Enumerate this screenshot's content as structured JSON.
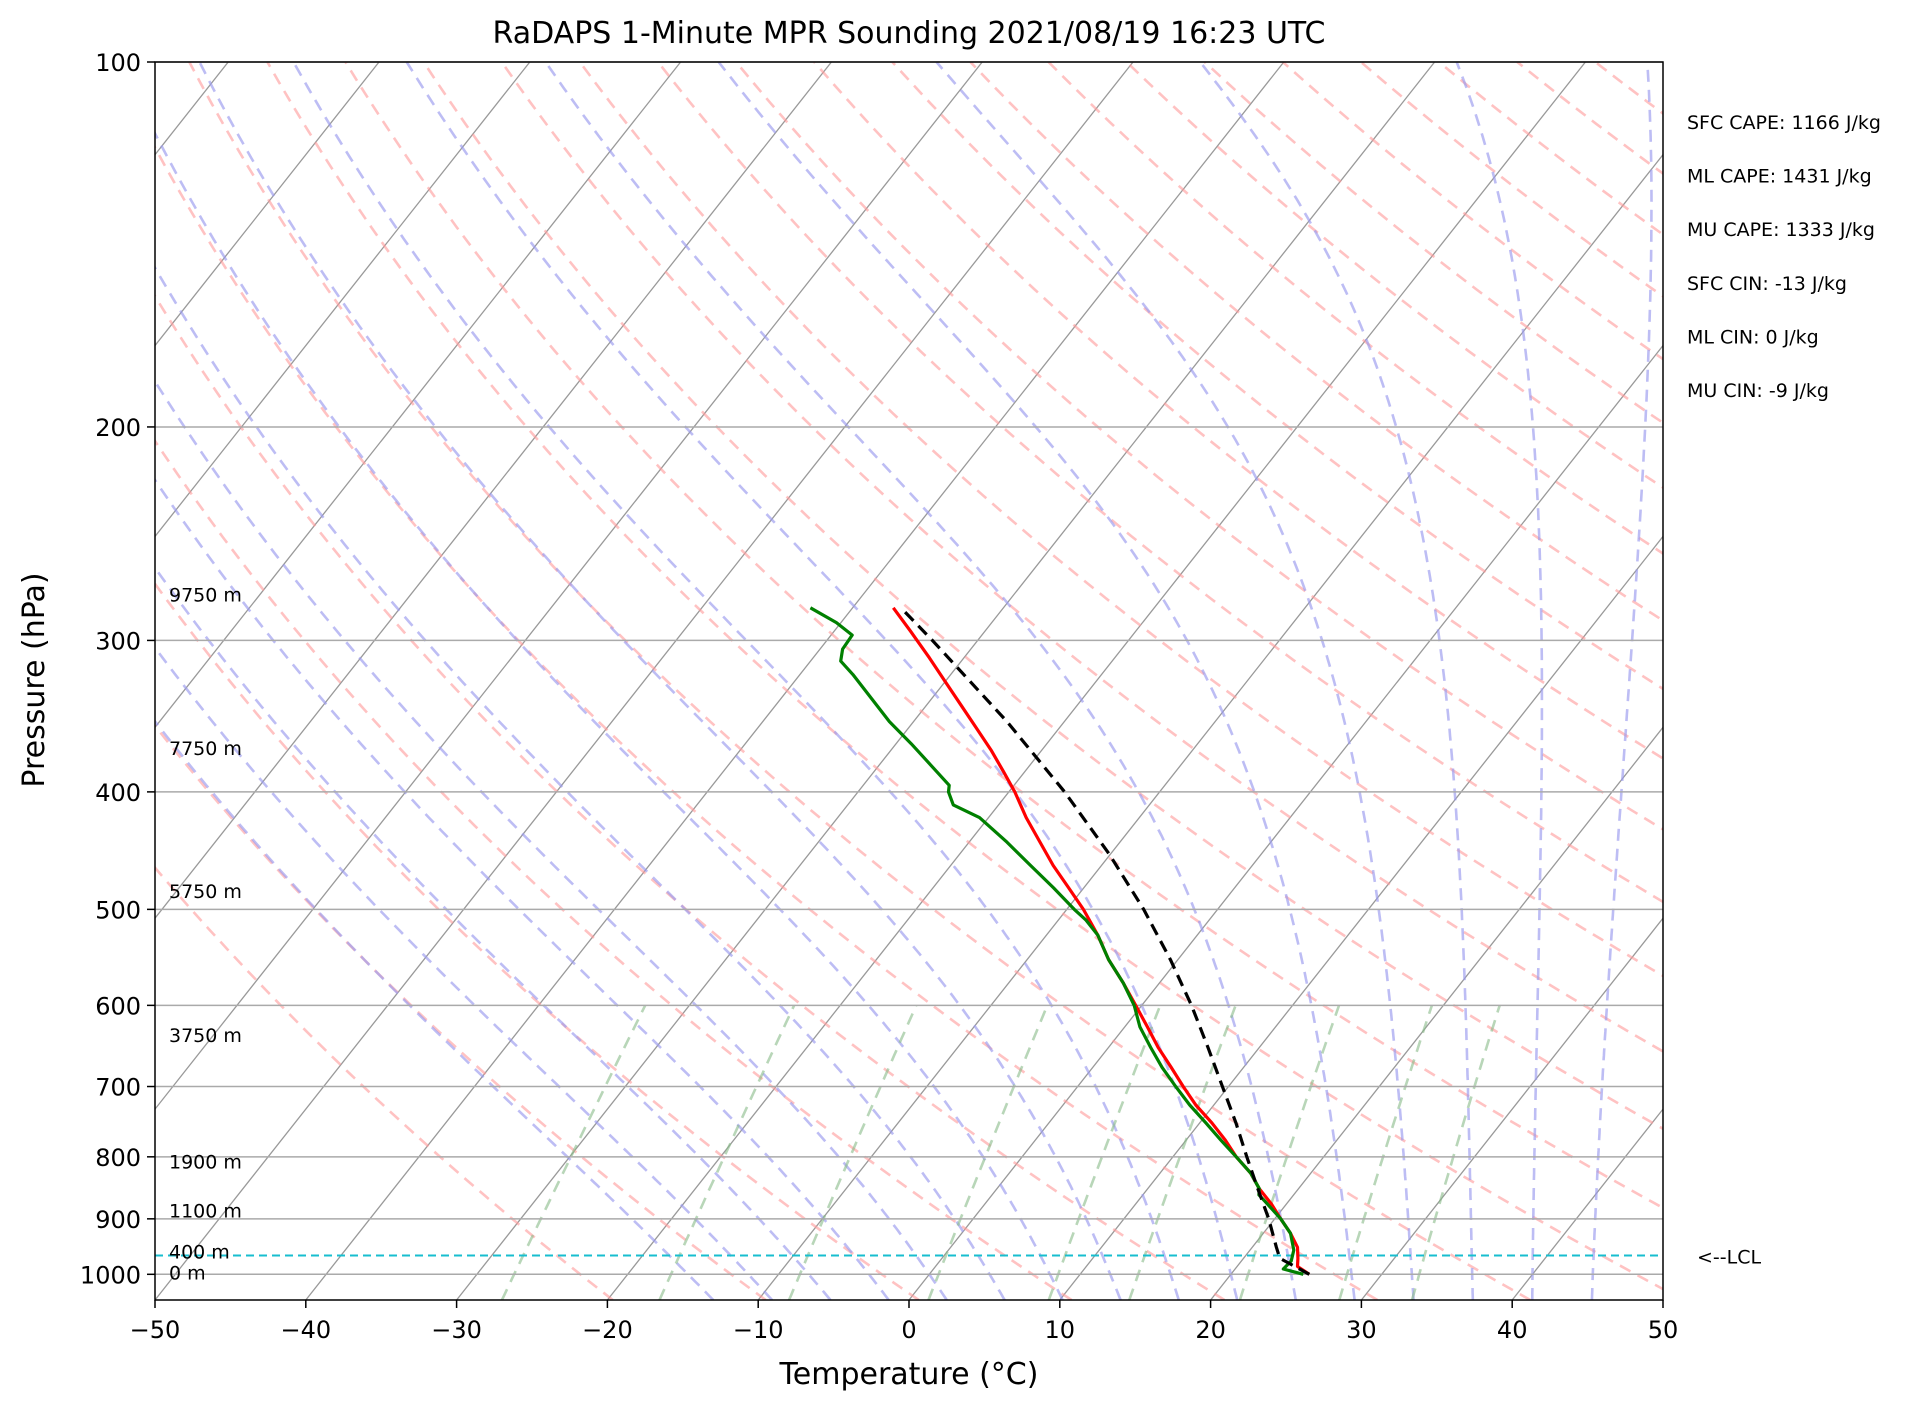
{
  "chart_data": {
    "type": "line",
    "subtype": "skew-t log-p",
    "title": "RaDAPS 1-Minute MPR Sounding 2021/08/19 16:23 UTC",
    "xlabel": "Temperature (°C)",
    "ylabel": "Pressure (hPa)",
    "xlim": [
      -50,
      50
    ],
    "ylim": [
      1050,
      100
    ],
    "y_scale": "log",
    "grid": true,
    "x_ticks": [
      -50,
      -40,
      -30,
      -20,
      -10,
      0,
      10,
      20,
      30,
      40,
      50
    ],
    "x_tick_labels": [
      "−50",
      "−40",
      "−30",
      "−20",
      "−10",
      "0",
      "10",
      "20",
      "30",
      "40",
      "50"
    ],
    "y_ticks": [
      100,
      200,
      300,
      400,
      500,
      600,
      700,
      800,
      900,
      1000
    ],
    "y_tick_labels": [
      "100",
      "200",
      "300",
      "400",
      "500",
      "600",
      "700",
      "800",
      "900",
      "1000"
    ],
    "stats": [
      "SFC CAPE: 1166 J/kg",
      "ML CAPE: 1431 J/kg",
      "MU CAPE: 1333 J/kg",
      "SFC CIN: -13 J/kg",
      "ML CIN: 0 J/kg",
      "MU CIN: -9 J/kg"
    ],
    "height_labels": [
      {
        "label": "9750 m",
        "p": 275
      },
      {
        "label": "7750 m",
        "p": 368
      },
      {
        "label": "5750 m",
        "p": 483
      },
      {
        "label": "3750 m",
        "p": 635
      },
      {
        "label": "1900 m",
        "p": 807
      },
      {
        "label": "1100 m",
        "p": 886
      },
      {
        "label": "400 m",
        "p": 958
      },
      {
        "label": "0 m",
        "p": 997
      }
    ],
    "lcl": {
      "label": "<--LCL",
      "p": 965
    },
    "series": [
      {
        "key": "temperature",
        "color": "#ff0000",
        "points": [
          {
            "p": 1000,
            "t": 25.2
          },
          {
            "p": 985,
            "t": 24.0
          },
          {
            "p": 970,
            "t": 23.6
          },
          {
            "p": 950,
            "t": 23.0
          },
          {
            "p": 925,
            "t": 21.8
          },
          {
            "p": 900,
            "t": 20.4
          },
          {
            "p": 875,
            "t": 19.0
          },
          {
            "p": 850,
            "t": 17.4
          },
          {
            "p": 825,
            "t": 16.0
          },
          {
            "p": 800,
            "t": 14.2
          },
          {
            "p": 775,
            "t": 12.6
          },
          {
            "p": 750,
            "t": 10.8
          },
          {
            "p": 725,
            "t": 8.8
          },
          {
            "p": 700,
            "t": 7.0
          },
          {
            "p": 675,
            "t": 5.2
          },
          {
            "p": 650,
            "t": 3.3
          },
          {
            "p": 625,
            "t": 1.5
          },
          {
            "p": 600,
            "t": -0.4
          },
          {
            "p": 575,
            "t": -2.4
          },
          {
            "p": 550,
            "t": -4.6
          },
          {
            "p": 525,
            "t": -6.6
          },
          {
            "p": 500,
            "t": -8.9
          },
          {
            "p": 480,
            "t": -11.0
          },
          {
            "p": 460,
            "t": -13.2
          },
          {
            "p": 440,
            "t": -15.3
          },
          {
            "p": 420,
            "t": -17.5
          },
          {
            "p": 400,
            "t": -19.6
          },
          {
            "p": 385,
            "t": -21.4
          },
          {
            "p": 370,
            "t": -23.3
          },
          {
            "p": 355,
            "t": -25.4
          },
          {
            "p": 340,
            "t": -27.6
          },
          {
            "p": 325,
            "t": -29.9
          },
          {
            "p": 310,
            "t": -32.3
          },
          {
            "p": 295,
            "t": -34.9
          },
          {
            "p": 282,
            "t": -37.3
          }
        ]
      },
      {
        "key": "dewpoint",
        "color": "#008000",
        "points": [
          {
            "p": 1000,
            "t": 24.8
          },
          {
            "p": 990,
            "t": 23.2
          },
          {
            "p": 975,
            "t": 23.3
          },
          {
            "p": 955,
            "t": 22.9
          },
          {
            "p": 925,
            "t": 21.8
          },
          {
            "p": 900,
            "t": 20.4
          },
          {
            "p": 870,
            "t": 18.4
          },
          {
            "p": 860,
            "t": 17.7
          },
          {
            "p": 850,
            "t": 17.4
          },
          {
            "p": 825,
            "t": 16.0
          },
          {
            "p": 800,
            "t": 14.2
          },
          {
            "p": 775,
            "t": 12.3
          },
          {
            "p": 750,
            "t": 10.4
          },
          {
            "p": 725,
            "t": 8.4
          },
          {
            "p": 700,
            "t": 6.5
          },
          {
            "p": 675,
            "t": 4.6
          },
          {
            "p": 650,
            "t": 2.8
          },
          {
            "p": 625,
            "t": 1.0
          },
          {
            "p": 600,
            "t": -0.5
          },
          {
            "p": 575,
            "t": -2.4
          },
          {
            "p": 550,
            "t": -4.6
          },
          {
            "p": 525,
            "t": -6.6
          },
          {
            "p": 510,
            "t": -8.2
          },
          {
            "p": 500,
            "t": -9.5
          },
          {
            "p": 480,
            "t": -12.0
          },
          {
            "p": 460,
            "t": -14.7
          },
          {
            "p": 440,
            "t": -17.5
          },
          {
            "p": 420,
            "t": -20.6
          },
          {
            "p": 410,
            "t": -23.0
          },
          {
            "p": 400,
            "t": -24.0
          },
          {
            "p": 395,
            "t": -24.3
          },
          {
            "p": 380,
            "t": -26.6
          },
          {
            "p": 365,
            "t": -29.0
          },
          {
            "p": 350,
            "t": -31.6
          },
          {
            "p": 335,
            "t": -34.0
          },
          {
            "p": 320,
            "t": -36.5
          },
          {
            "p": 312,
            "t": -38.0
          },
          {
            "p": 305,
            "t": -38.5
          },
          {
            "p": 297,
            "t": -38.6
          },
          {
            "p": 290,
            "t": -40.3
          },
          {
            "p": 282,
            "t": -42.8
          }
        ]
      },
      {
        "key": "parcel",
        "color": "#000000",
        "dash": true,
        "points": [
          {
            "p": 1000,
            "t": 25.2
          },
          {
            "p": 970,
            "t": 22.4
          },
          {
            "p": 950,
            "t": 21.6
          },
          {
            "p": 900,
            "t": 19.6
          },
          {
            "p": 850,
            "t": 17.3
          },
          {
            "p": 800,
            "t": 14.9
          },
          {
            "p": 750,
            "t": 12.4
          },
          {
            "p": 700,
            "t": 9.6
          },
          {
            "p": 650,
            "t": 6.6
          },
          {
            "p": 600,
            "t": 3.3
          },
          {
            "p": 550,
            "t": -0.5
          },
          {
            "p": 500,
            "t": -4.9
          },
          {
            "p": 450,
            "t": -10.1
          },
          {
            "p": 400,
            "t": -16.3
          },
          {
            "p": 350,
            "t": -23.8
          },
          {
            "p": 300,
            "t": -33.0
          },
          {
            "p": 282,
            "t": -36.8
          }
        ]
      }
    ]
  }
}
